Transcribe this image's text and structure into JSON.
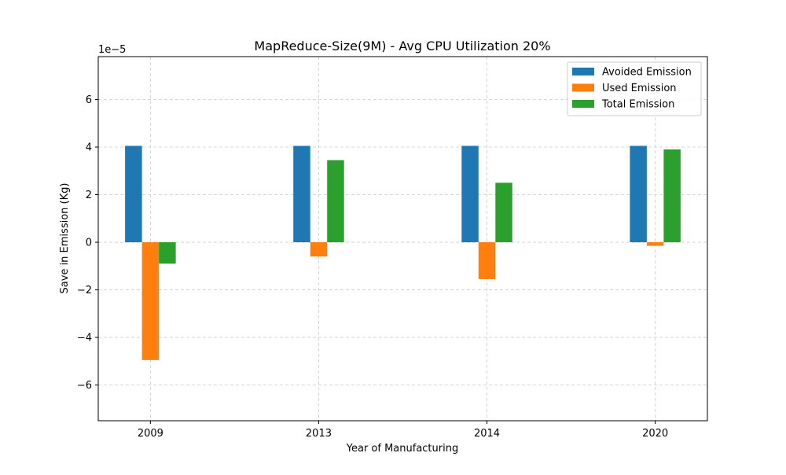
{
  "chart_data": {
    "type": "bar",
    "title": "MapReduce-Size(9M) - Avg CPU Utilization 20%",
    "xlabel": "Year of Manufacturing",
    "ylabel": "Save in Emission (Kg)",
    "y_offset_label": "1e−5",
    "y_scale_factor": 1e-05,
    "categories": [
      "2009",
      "2013",
      "2014",
      "2020"
    ],
    "series": [
      {
        "name": "Avoided Emission",
        "color": "#1f77b4",
        "values": [
          4.05e-05,
          4.05e-05,
          4.05e-05,
          4.05e-05
        ]
      },
      {
        "name": "Used Emission",
        "color": "#ff7f0e",
        "values": [
          -4.95e-05,
          -6e-06,
          -1.55e-05,
          -1.5e-06
        ]
      },
      {
        "name": "Total Emission",
        "color": "#2ca02c",
        "values": [
          -9e-06,
          3.45e-05,
          2.5e-05,
          3.9e-05
        ]
      }
    ],
    "yticks": [
      -6,
      -4,
      -2,
      0,
      2,
      4,
      6
    ],
    "ytick_labels": [
      "−6",
      "−4",
      "−2",
      "0",
      "2",
      "4",
      "6"
    ],
    "ylim": [
      -7.5e-05,
      7.8e-05
    ],
    "grid": true,
    "legend_position": "top-right"
  }
}
